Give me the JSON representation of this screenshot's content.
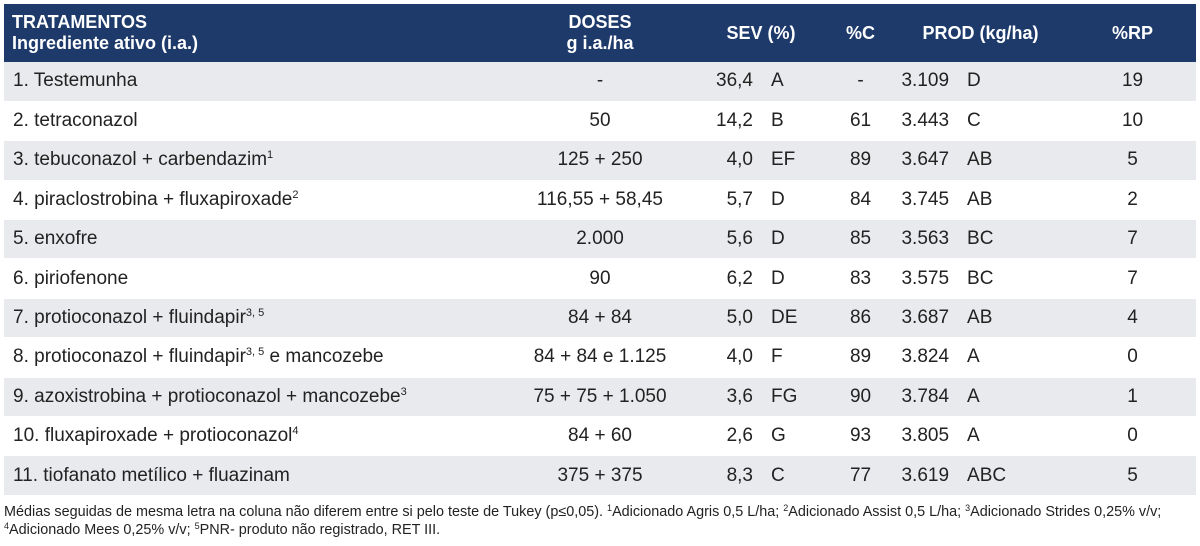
{
  "header": {
    "trat_line1": "TRATAMENTOS",
    "trat_line2": "Ingrediente ativo (i.a.)",
    "doses_line1": "DOSES",
    "doses_line2": "g i.a./ha",
    "sev": "SEV (%)",
    "pc": "%C",
    "prod": "PROD (kg/ha)",
    "rp": "%RP"
  },
  "rows": [
    {
      "trat": "1. Testemunha",
      "sup": "",
      "trat_tail": "",
      "dose": "-",
      "sev": "36,4",
      "sev_letter": "A",
      "pc": "-",
      "prod": "3.109",
      "prod_letter": "D",
      "rp": "19"
    },
    {
      "trat": "2. tetraconazol",
      "sup": "",
      "trat_tail": "",
      "dose": "50",
      "sev": "14,2",
      "sev_letter": "B",
      "pc": "61",
      "prod": "3.443",
      "prod_letter": "C",
      "rp": "10"
    },
    {
      "trat": "3. tebuconazol + carbendazim",
      "sup": "1",
      "trat_tail": "",
      "dose": "125 + 250",
      "sev": "4,0",
      "sev_letter": "EF",
      "pc": "89",
      "prod": "3.647",
      "prod_letter": "AB",
      "rp": "5"
    },
    {
      "trat": "4. piraclostrobina + fluxapiroxade",
      "sup": "2",
      "trat_tail": "",
      "dose": "116,55 + 58,45",
      "sev": "5,7",
      "sev_letter": "D",
      "pc": "84",
      "prod": "3.745",
      "prod_letter": "AB",
      "rp": "2"
    },
    {
      "trat": "5. enxofre",
      "sup": "",
      "trat_tail": "",
      "dose": "2.000",
      "sev": "5,6",
      "sev_letter": "D",
      "pc": "85",
      "prod": "3.563",
      "prod_letter": "BC",
      "rp": "7"
    },
    {
      "trat": "6. piriofenone",
      "sup": "",
      "trat_tail": "",
      "dose": "90",
      "sev": "6,2",
      "sev_letter": "D",
      "pc": "83",
      "prod": "3.575",
      "prod_letter": "BC",
      "rp": "7"
    },
    {
      "trat": "7. protioconazol + fluindapir",
      "sup": "3, 5",
      "trat_tail": "",
      "dose": "84 + 84",
      "sev": "5,0",
      "sev_letter": "DE",
      "pc": "86",
      "prod": "3.687",
      "prod_letter": "AB",
      "rp": "4"
    },
    {
      "trat": "8. protioconazol + fluindapir",
      "sup": "3, 5",
      "trat_tail": " e mancozebe",
      "dose": "84 + 84 e 1.125",
      "sev": "4,0",
      "sev_letter": "F",
      "pc": "89",
      "prod": "3.824",
      "prod_letter": "A",
      "rp": "0"
    },
    {
      "trat": "9. azoxistrobina + protioconazol + mancozebe",
      "sup": "3",
      "trat_tail": "",
      "dose": "75 + 75 + 1.050",
      "sev": "3,6",
      "sev_letter": "FG",
      "pc": "90",
      "prod": "3.784",
      "prod_letter": "A",
      "rp": "1"
    },
    {
      "trat": "10. fluxapiroxade + protioconazol",
      "sup": "4",
      "trat_tail": "",
      "dose": "84 + 60",
      "sev": "2,6",
      "sev_letter": "G",
      "pc": "93",
      "prod": "3.805",
      "prod_letter": "A",
      "rp": "0"
    },
    {
      "trat": "11. tiofanato metílico + fluazinam",
      "sup": "",
      "trat_tail": "",
      "dose": "375 + 375",
      "sev": "8,3",
      "sev_letter": "C",
      "pc": "77",
      "prod": "3.619",
      "prod_letter": "ABC",
      "rp": "5"
    }
  ],
  "footnote": {
    "p1": "Médias seguidas de mesma letra na coluna não diferem entre si pelo teste de Tukey (p≤0,05). ",
    "s1": "1",
    "p2": "Adicionado Agris 0,5 L/ha; ",
    "s2": "2",
    "p3": "Adicionado Assist 0,5 L/ha; ",
    "s3": "3",
    "p4": "Adicionado Strides 0,25% v/v; ",
    "s4": "4",
    "p5": "Adicionado Mees 0,25% v/v; ",
    "s5": "5",
    "p6": "PNR- produto não registrado, RET III."
  },
  "colors": {
    "header_bg": "#1d3a6b",
    "header_text": "#ffffff",
    "row_stripe": "#e9eaed"
  }
}
